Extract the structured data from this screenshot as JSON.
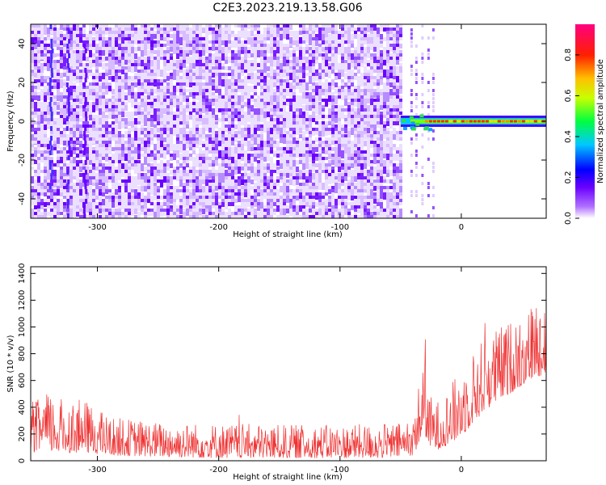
{
  "title": "C2E3.2023.219.13.58.G06",
  "chart_data": [
    {
      "type": "heatmap",
      "xlabel": "Height of straight line (km)",
      "ylabel": "Frequency (Hz)",
      "xlim": [
        -355,
        70
      ],
      "ylim": [
        -50,
        50
      ],
      "xticks": [
        -300,
        -200,
        -100,
        0
      ],
      "xtick_labels": [
        "-300",
        "-200",
        "-100",
        "0"
      ],
      "yticks": [
        -40,
        -20,
        0,
        20,
        40
      ],
      "ytick_labels": [
        "-40",
        "-20",
        "0",
        "20",
        "40"
      ],
      "grid": false,
      "colorbar": {
        "label": "Normalized spectral amplitude",
        "range": [
          0,
          0.95
        ],
        "ticks": [
          0.0,
          0.2,
          0.4,
          0.6,
          0.8
        ],
        "tick_labels": [
          "0.0",
          "0.2",
          "0.4",
          "0.6",
          "0.8"
        ],
        "colors": [
          "#ffffff",
          "#7f00ff",
          "#0000ff",
          "#00bfff",
          "#00ff00",
          "#ffff00",
          "#ff8000",
          "#ff0000",
          "#ff0080"
        ]
      },
      "noise_region_x": [
        -355,
        -50
      ],
      "noise_amplitude": [
        0.05,
        0.15
      ],
      "signal_start_x": -50,
      "signal_band": {
        "x": [
          -50,
          70
        ],
        "frequency_center": 0,
        "frequency_width": 6,
        "peak_amplitude": 0.75
      }
    },
    {
      "type": "line",
      "xlabel": "Height of straight line (km)",
      "ylabel": "SNR (10 * v/v)",
      "xlim": [
        -355,
        70
      ],
      "ylim": [
        0,
        1450
      ],
      "xticks": [
        -300,
        -200,
        -100,
        0
      ],
      "xtick_labels": [
        "-300",
        "-200",
        "-100",
        "0"
      ],
      "yticks": [
        0,
        200,
        400,
        600,
        800,
        1000,
        1200,
        1400
      ],
      "ytick_labels": [
        "0",
        "200",
        "400",
        "600",
        "800",
        "1000",
        "1200",
        "1400"
      ],
      "grid": false,
      "series": [
        {
          "color": "#ef3333",
          "envelope": [
            {
              "x": -355,
              "lo": 60,
              "hi": 380
            },
            {
              "x": -345,
              "lo": 70,
              "hi": 520
            },
            {
              "x": -330,
              "lo": 60,
              "hi": 470
            },
            {
              "x": -310,
              "lo": 60,
              "hi": 450
            },
            {
              "x": -290,
              "lo": 40,
              "hi": 330
            },
            {
              "x": -250,
              "lo": 30,
              "hi": 290
            },
            {
              "x": -200,
              "lo": 20,
              "hi": 280
            },
            {
              "x": -150,
              "lo": 20,
              "hi": 270
            },
            {
              "x": -100,
              "lo": 20,
              "hi": 270
            },
            {
              "x": -60,
              "lo": 20,
              "hi": 280
            },
            {
              "x": -40,
              "lo": 40,
              "hi": 290
            },
            {
              "x": -33,
              "lo": 150,
              "hi": 700
            },
            {
              "x": -30,
              "lo": 200,
              "hi": 1000
            },
            {
              "x": -27,
              "lo": 100,
              "hi": 500
            },
            {
              "x": -20,
              "lo": 80,
              "hi": 450
            },
            {
              "x": -10,
              "lo": 120,
              "hi": 550
            },
            {
              "x": 0,
              "lo": 180,
              "hi": 700
            },
            {
              "x": 20,
              "lo": 380,
              "hi": 950
            },
            {
              "x": 40,
              "lo": 500,
              "hi": 1050
            },
            {
              "x": 60,
              "lo": 620,
              "hi": 1200
            },
            {
              "x": 70,
              "lo": 650,
              "hi": 1250
            }
          ]
        }
      ]
    }
  ]
}
